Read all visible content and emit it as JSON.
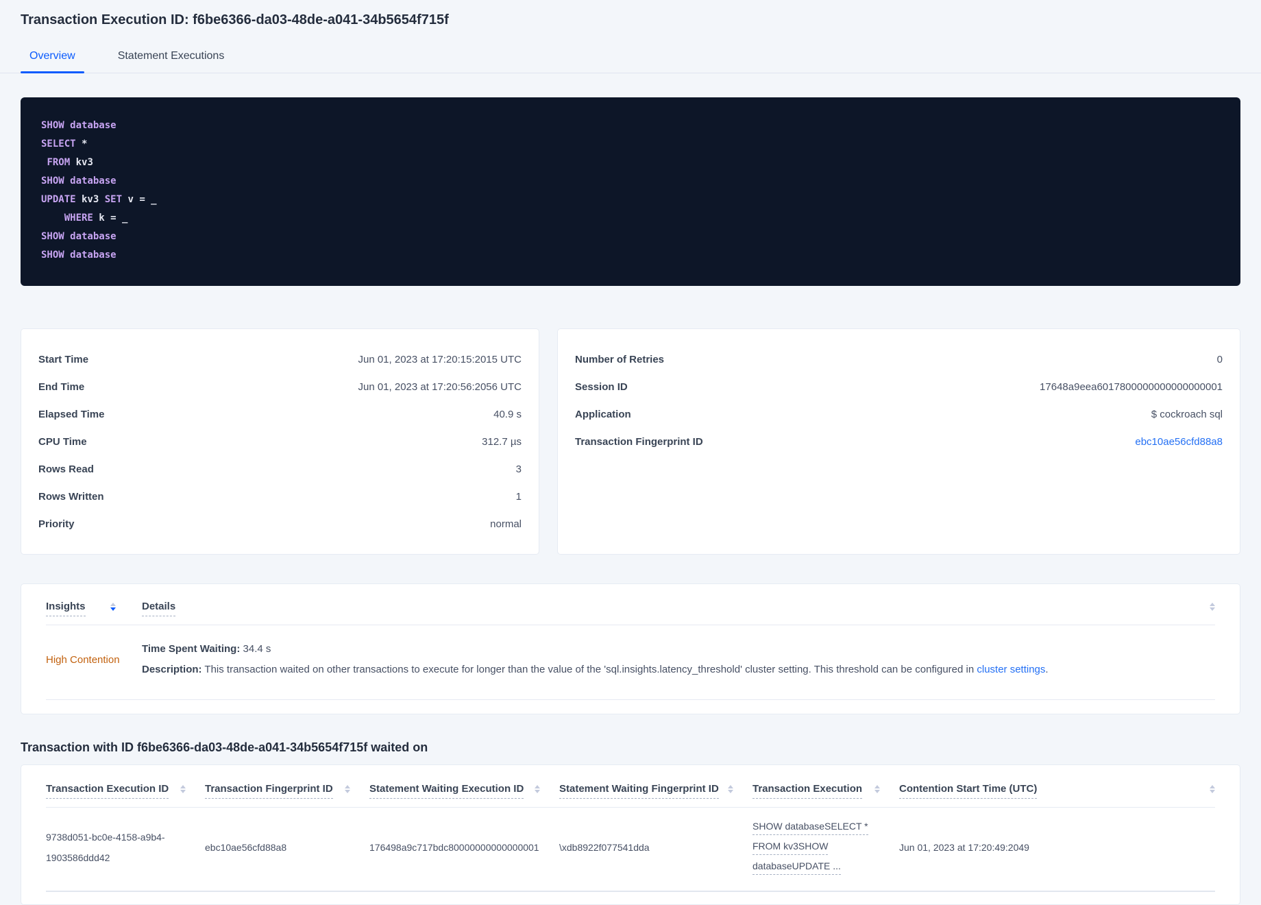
{
  "header": {
    "title": "Transaction Execution ID: f6be6366-da03-48de-a041-34b5654f715f",
    "tabs": [
      {
        "label": "Overview",
        "active": true
      },
      {
        "label": "Statement Executions",
        "active": false
      }
    ]
  },
  "sql_box": {
    "lines": [
      {
        "tokens": [
          {
            "type": "kw",
            "text": "SHOW database"
          }
        ]
      },
      {
        "tokens": [
          {
            "type": "kw",
            "text": "SELECT"
          },
          {
            "type": "pl",
            "text": " *"
          }
        ]
      },
      {
        "tokens": [
          {
            "type": "pl",
            "text": " "
          },
          {
            "type": "kw",
            "text": "FROM"
          },
          {
            "type": "pl",
            "text": " kv3"
          }
        ]
      },
      {
        "tokens": [
          {
            "type": "kw",
            "text": "SHOW database"
          }
        ]
      },
      {
        "tokens": [
          {
            "type": "kw",
            "text": "UPDATE"
          },
          {
            "type": "pl",
            "text": " kv3 "
          },
          {
            "type": "kw",
            "text": "SET"
          },
          {
            "type": "pl",
            "text": " v = _"
          }
        ]
      },
      {
        "tokens": [
          {
            "type": "pl",
            "text": "    "
          },
          {
            "type": "kw",
            "text": "WHERE"
          },
          {
            "type": "pl",
            "text": " k = _"
          }
        ]
      },
      {
        "tokens": [
          {
            "type": "kw",
            "text": "SHOW database"
          }
        ]
      },
      {
        "tokens": [
          {
            "type": "kw",
            "text": "SHOW database"
          }
        ]
      }
    ]
  },
  "summary_left": {
    "rows": [
      {
        "label": "Start Time",
        "value": "Jun 01, 2023 at 17:20:15:2015 UTC"
      },
      {
        "label": "End Time",
        "value": "Jun 01, 2023 at 17:20:56:2056 UTC"
      },
      {
        "label": "Elapsed Time",
        "value": "40.9 s"
      },
      {
        "label": "CPU Time",
        "value": "312.7 µs"
      },
      {
        "label": "Rows Read",
        "value": "3"
      },
      {
        "label": "Rows Written",
        "value": "1"
      },
      {
        "label": "Priority",
        "value": "normal"
      }
    ]
  },
  "summary_right": {
    "rows": [
      {
        "label": "Number of Retries",
        "value": "0"
      },
      {
        "label": "Session ID",
        "value": "17648a9eea6017800000000000000001"
      },
      {
        "label": "Application",
        "value": "$ cockroach sql"
      },
      {
        "label": "Transaction Fingerprint ID",
        "value": "ebc10ae56cfd88a8"
      }
    ]
  },
  "insights_table": {
    "columns": {
      "insight": "Insights",
      "details": "Details"
    },
    "row": {
      "insight": "High Contention",
      "waiting_label": "Time Spent Waiting:",
      "waiting_value": " 34.4 s",
      "description_label": "Description:",
      "description_text": " This transaction waited on other transactions to execute for longer than the value of the 'sql.insights.latency_threshold' cluster setting. This threshold can be configured in ",
      "description_link": "cluster settings",
      "description_suffix": "."
    }
  },
  "waited_on": {
    "heading": "Transaction with ID f6be6366-da03-48de-a041-34b5654f715f waited on",
    "columns": [
      "Transaction Execution ID",
      "Transaction Fingerprint ID",
      "Statement Waiting Execution ID",
      "Statement Waiting Fingerprint ID",
      "Transaction Execution",
      "Contention Start Time (UTC)"
    ],
    "row": {
      "transaction_execution_id": "9738d051-bc0e-4158-a9b4-1903586ddd42",
      "transaction_fingerprint_id": "ebc10ae56cfd88a8",
      "statement_waiting_execution_id": "176498a9c717bdc80000000000000001",
      "statement_waiting_fingerprint_id": "\\xdb8922f077541dda",
      "transaction_execution_lines": [
        "SHOW databaseSELECT *",
        "FROM kv3SHOW",
        "databaseUPDATE ..."
      ],
      "contention_start_time": "Jun 01, 2023 at 17:20:49:2049"
    }
  },
  "colors": {
    "accent_blue": "#0b5bfd",
    "link_blue": "#2470f4",
    "insight_orange": "#c2610e",
    "code_background": "#0d1628",
    "code_keyword": "#c7a4f2"
  }
}
